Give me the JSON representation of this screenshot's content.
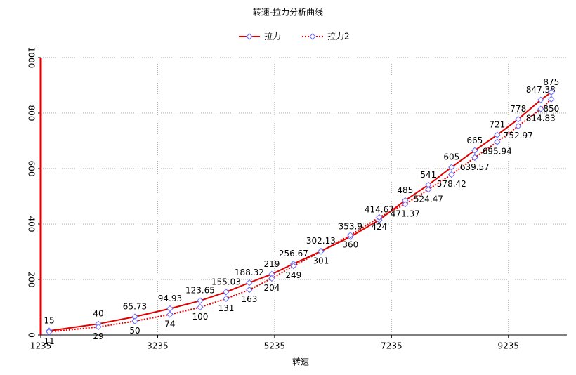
{
  "chart_data": {
    "type": "line",
    "title": "转速-拉力分析曲线",
    "x_label": "转速",
    "x": [
      1379,
      2220,
      2845,
      3445,
      3962,
      4406,
      4803,
      5187,
      5559,
      6028,
      6532,
      7025,
      7469,
      7866,
      8262,
      8659,
      9043,
      9403,
      9788,
      9968
    ],
    "series": [
      {
        "name": "拉力",
        "color": "#e00000",
        "marker_color": "#6b6bff",
        "dash": false,
        "values": [
          15,
          40,
          65.73,
          94.93,
          123.65,
          155.03,
          188.32,
          219,
          256.67,
          302.13,
          353.9,
          414.67,
          485,
          541,
          605,
          665,
          721,
          778,
          847.38,
          875
        ]
      },
      {
        "name": "拉力2",
        "color": "#e00000",
        "marker_color": "#6b6bff",
        "dash": true,
        "values": [
          11,
          29,
          50,
          74,
          100,
          131,
          163,
          204,
          249,
          301,
          360,
          424,
          471.37,
          524.47,
          578.42,
          639.57,
          695.94,
          752.97,
          814.83,
          850
        ]
      }
    ],
    "xlim": [
      1235,
      10235
    ],
    "xticks": [
      1235,
      3235,
      5235,
      7235,
      9235
    ],
    "ylim": [
      0,
      1000
    ],
    "yticks": [
      0,
      200,
      400,
      600,
      800,
      1000
    ],
    "grid": true,
    "legend": "top"
  }
}
